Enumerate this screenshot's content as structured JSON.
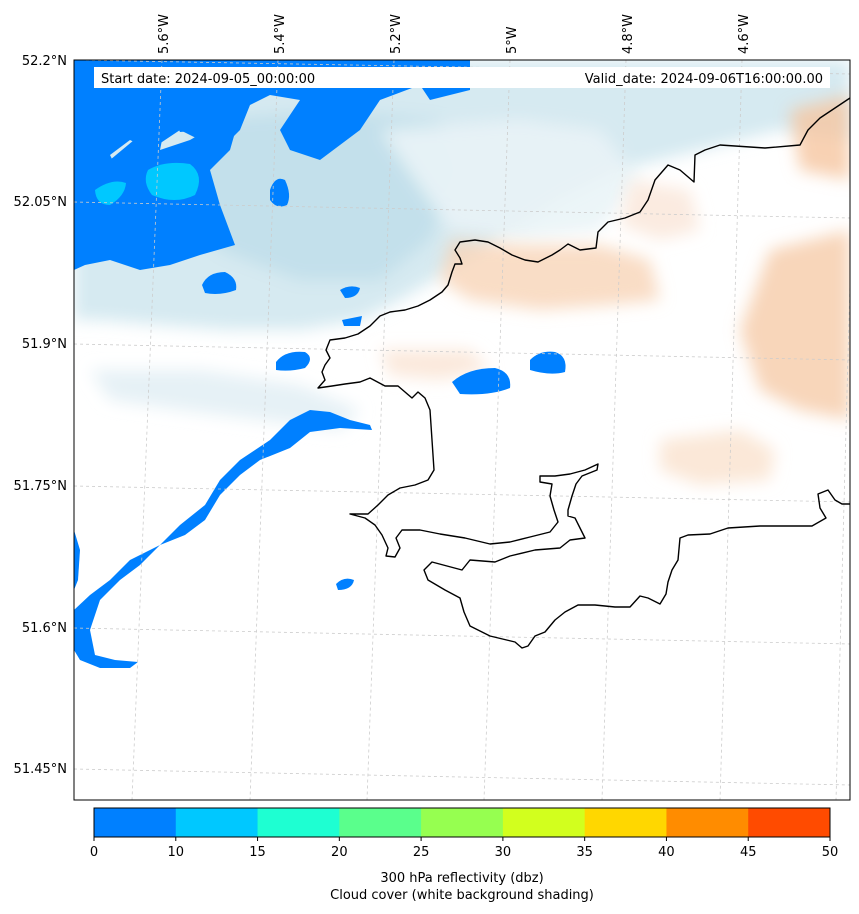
{
  "header": {
    "start_date": "Start date: 2024-09-05_00:00:00",
    "valid_date": "Valid_date: 2024-09-06T16:00:00.00"
  },
  "axes": {
    "longitude_labels": [
      "5.6°W",
      "5.4°W",
      "5.2°W",
      "5°W",
      "4.8°W",
      "4.6°W"
    ],
    "latitude_labels": [
      "52.2°N",
      "52.05°N",
      "51.9°N",
      "51.75°N",
      "51.6°N",
      "51.45°N"
    ]
  },
  "colorbar": {
    "ticks": [
      "0",
      "10",
      "15",
      "20",
      "25",
      "30",
      "35",
      "40",
      "45",
      "50"
    ],
    "colors": [
      "#0080ff",
      "#00c8ff",
      "#1effd2",
      "#5aff8c",
      "#96ff50",
      "#d2ff1e",
      "#ffd700",
      "#ff8c00",
      "#ff4b00"
    ],
    "label_line1": "300 hPa reflectivity (dbz)",
    "label_line2": "Cloud cover (white background shading)"
  },
  "chart_data": {
    "type": "heatmap",
    "title": "300 hPa reflectivity (dbz)",
    "subtitle": "Cloud cover (white background shading)",
    "start_date": "2024-09-05_00:00:00",
    "valid_date": "2024-09-06T16:00:00.00",
    "lon_range": [
      -5.7,
      -4.5
    ],
    "lat_range": [
      51.43,
      52.2
    ],
    "reflectivity_levels": [
      0,
      10,
      15,
      20,
      25,
      30,
      35,
      40,
      45,
      50
    ],
    "grid": true
  }
}
